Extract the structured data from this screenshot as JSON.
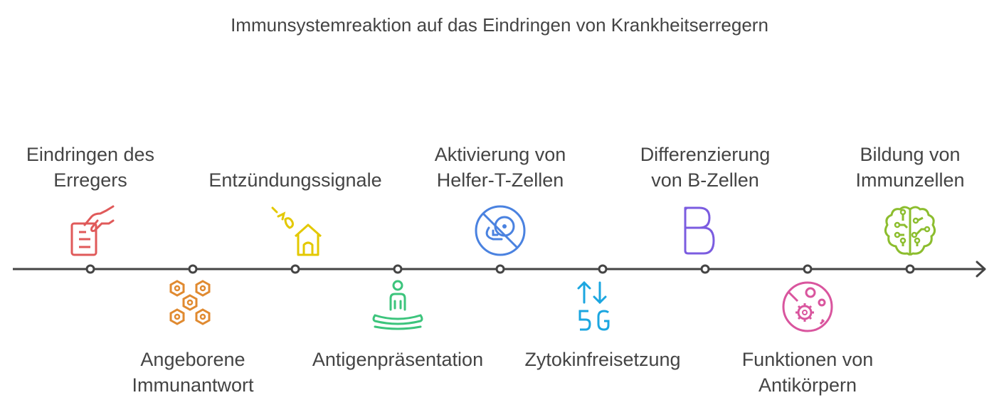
{
  "title": "Immunsystemreaktion auf das Eindringen von Krankheitserregern",
  "steps": [
    {
      "label": "Eindringen des\nErregers",
      "position": "top",
      "icon": "hand-document-icon",
      "color": "#e05a5a"
    },
    {
      "label": "Angeborene\nImmunantwort",
      "position": "bottom",
      "icon": "hexagon-cells-icon",
      "color": "#e08a30"
    },
    {
      "label": "Entzündungssignale",
      "position": "top",
      "icon": "house-signal-icon",
      "color": "#e3c800"
    },
    {
      "label": "Antigenpräsentation",
      "position": "bottom",
      "icon": "person-meditation-icon",
      "color": "#3cc47c"
    },
    {
      "label": "Aktivierung von\nHelfer-T-Zellen",
      "position": "top",
      "icon": "no-tracking-icon",
      "color": "#4a82e0"
    },
    {
      "label": "Zytokinfreisetzung",
      "position": "bottom",
      "icon": "5g-signal-icon",
      "color": "#1ba6e0"
    },
    {
      "label": "Differenzierung\nvon B-Zellen",
      "position": "top",
      "icon": "letter-b-icon",
      "color": "#7b5ce0"
    },
    {
      "label": "Funktionen von\nAntikörpern",
      "position": "bottom",
      "icon": "virus-petri-icon",
      "color": "#d9559e"
    },
    {
      "label": "Bildung von\nImmunzellen",
      "position": "top",
      "icon": "brain-circuit-icon",
      "color": "#8cbd2e"
    }
  ]
}
